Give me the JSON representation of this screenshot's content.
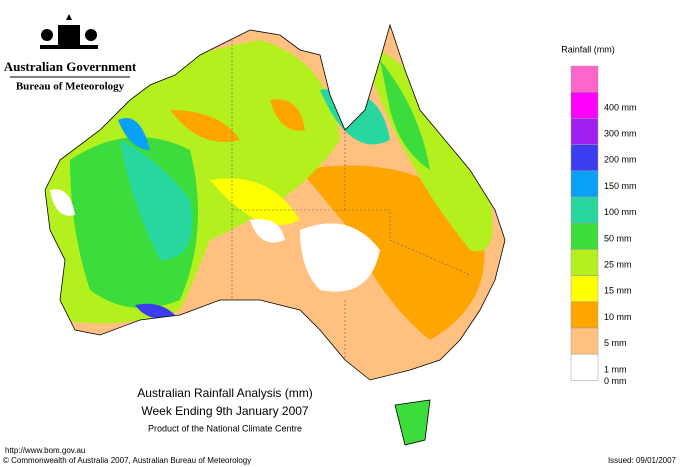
{
  "header": {
    "agency": "Australian Government",
    "bureau": "Bureau of Meteorology"
  },
  "legend": {
    "title": "Rainfall (mm)",
    "items": [
      {
        "label": null,
        "color": "#ff66cc"
      },
      {
        "label": "400 mm",
        "color": "#ff00ff"
      },
      {
        "label": "300 mm",
        "color": "#a020f0"
      },
      {
        "label": "200 mm",
        "color": "#3c3cf0"
      },
      {
        "label": "150 mm",
        "color": "#0aa0f5"
      },
      {
        "label": "100 mm",
        "color": "#28d7a0"
      },
      {
        "label": "50 mm",
        "color": "#3cdc3c"
      },
      {
        "label": "25 mm",
        "color": "#b4f01e"
      },
      {
        "label": "15 mm",
        "color": "#ffff00"
      },
      {
        "label": "10 mm",
        "color": "#ffa500"
      },
      {
        "label": "5 mm",
        "color": "#ffc080"
      },
      {
        "label": "1 mm",
        "color": "#ffffff"
      }
    ],
    "zero_label": "0 mm"
  },
  "caption": {
    "title": "Australian Rainfall Analysis (mm)",
    "period": "Week Ending 9th January 2007",
    "product": "Product of the National Climate Centre"
  },
  "footer": {
    "url": "http://www.bom.gov.au",
    "copyright": "© Commonwealth of Australia 2007, Australian Bureau of Meteorology",
    "issued": "Issued: 09/01/2007"
  }
}
